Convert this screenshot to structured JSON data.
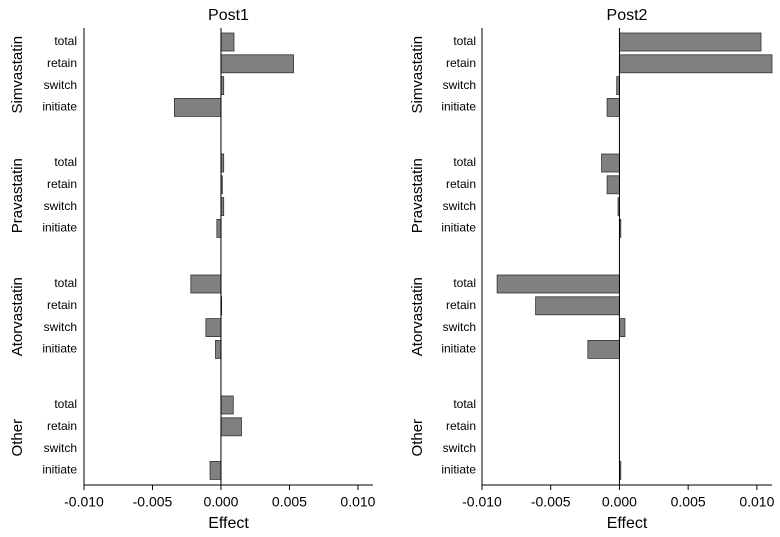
{
  "chart_data": [
    {
      "type": "barh",
      "title": "Post1",
      "xlabel": "Effect",
      "color": "#808080",
      "xlim": [
        -0.01,
        0.0111
      ],
      "xticks": [
        {
          "value": -0.01,
          "label": "-0.010"
        },
        {
          "value": -0.005,
          "label": "-0.005"
        },
        {
          "value": 0,
          "label": "0.000"
        },
        {
          "value": 0.005,
          "label": "0.005"
        },
        {
          "value": 0.01,
          "label": "0.010"
        }
      ],
      "groups": [
        {
          "name": "Simvastatin",
          "categories": [
            "total",
            "retain",
            "switch",
            "initiate"
          ],
          "values": [
            0.00095,
            0.0053,
            0.0002,
            -0.0034
          ]
        },
        {
          "name": "Pravastatin",
          "categories": [
            "total",
            "retain",
            "switch",
            "initiate"
          ],
          "values": [
            0.0002,
            0.0001,
            0.0002,
            -0.0003
          ]
        },
        {
          "name": "Atorvastatin",
          "categories": [
            "total",
            "retain",
            "switch",
            "initiate"
          ],
          "values": [
            -0.0022,
            5e-05,
            -0.0011,
            -0.0004
          ]
        },
        {
          "name": "Other",
          "categories": [
            "total",
            "retain",
            "switch",
            "initiate"
          ],
          "values": [
            0.0009,
            0.0015,
            0,
            -0.0008
          ]
        }
      ]
    },
    {
      "type": "barh",
      "title": "Post2",
      "xlabel": "Effect",
      "color": "#808080",
      "xlim": [
        -0.01,
        0.0111
      ],
      "xticks": [
        {
          "value": -0.01,
          "label": "-0.010"
        },
        {
          "value": -0.005,
          "label": "-0.005"
        },
        {
          "value": 0,
          "label": "0.000"
        },
        {
          "value": 0.005,
          "label": "0.005"
        },
        {
          "value": 0.01,
          "label": "0.010"
        }
      ],
      "groups": [
        {
          "name": "Simvastatin",
          "categories": [
            "total",
            "retain",
            "switch",
            "initiate"
          ],
          "values": [
            0.0103,
            0.0111,
            -0.0002,
            -0.0009
          ]
        },
        {
          "name": "Pravastatin",
          "categories": [
            "total",
            "retain",
            "switch",
            "initiate"
          ],
          "values": [
            -0.0013,
            -0.0009,
            -0.0001,
            0.0001
          ]
        },
        {
          "name": "Atorvastatin",
          "categories": [
            "total",
            "retain",
            "switch",
            "initiate"
          ],
          "values": [
            -0.0089,
            -0.0061,
            0.0004,
            -0.0023
          ]
        },
        {
          "name": "Other",
          "categories": [
            "total",
            "retain",
            "switch",
            "initiate"
          ],
          "values": [
            0,
            0,
            0,
            0.0001
          ]
        }
      ]
    }
  ]
}
